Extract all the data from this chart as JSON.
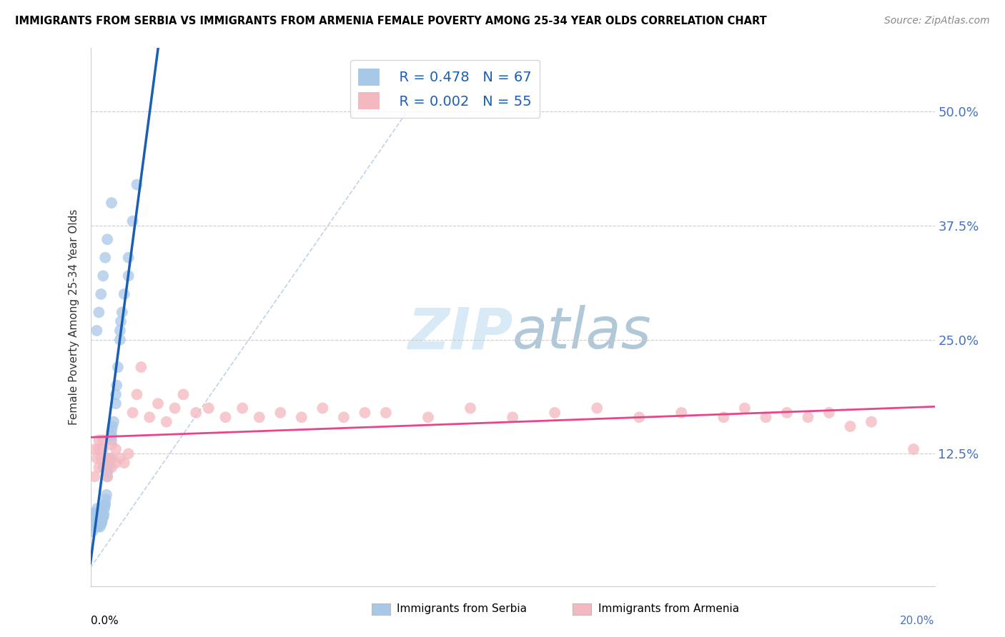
{
  "title": "IMMIGRANTS FROM SERBIA VS IMMIGRANTS FROM ARMENIA FEMALE POVERTY AMONG 25-34 YEAR OLDS CORRELATION CHART",
  "source": "Source: ZipAtlas.com",
  "ylabel": "Female Poverty Among 25-34 Year Olds",
  "yticks_labels": [
    "12.5%",
    "25.0%",
    "37.5%",
    "50.0%"
  ],
  "ytick_vals": [
    0.125,
    0.25,
    0.375,
    0.5
  ],
  "xlim": [
    0.0,
    0.2
  ],
  "ylim": [
    -0.02,
    0.57
  ],
  "legend_serbia_R": "0.478",
  "legend_serbia_N": "67",
  "legend_armenia_R": "0.002",
  "legend_armenia_N": "55",
  "serbia_color": "#a8c8e8",
  "armenia_color": "#f4b8c0",
  "serbia_line_color": "#1a5fb4",
  "armenia_line_color": "#e8448c",
  "diag_color": "#b0c8e0",
  "watermark_color": "#d8eaf5",
  "serbia_x": [
    0.0005,
    0.001,
    0.001,
    0.0012,
    0.0013,
    0.0015,
    0.0015,
    0.0016,
    0.0016,
    0.0017,
    0.0018,
    0.0018,
    0.0019,
    0.002,
    0.002,
    0.002,
    0.002,
    0.0021,
    0.0022,
    0.0022,
    0.0023,
    0.0023,
    0.0024,
    0.0025,
    0.0025,
    0.0026,
    0.0027,
    0.0028,
    0.003,
    0.003,
    0.003,
    0.0032,
    0.0033,
    0.0034,
    0.0035,
    0.0036,
    0.0038,
    0.004,
    0.004,
    0.0042,
    0.0044,
    0.0046,
    0.005,
    0.005,
    0.005,
    0.0052,
    0.0055,
    0.006,
    0.006,
    0.0062,
    0.0065,
    0.007,
    0.007,
    0.0072,
    0.0075,
    0.008,
    0.009,
    0.009,
    0.01,
    0.011,
    0.0015,
    0.002,
    0.0025,
    0.003,
    0.0035,
    0.004,
    0.005
  ],
  "serbia_y": [
    0.04,
    0.05,
    0.06,
    0.055,
    0.045,
    0.05,
    0.06,
    0.055,
    0.065,
    0.05,
    0.045,
    0.055,
    0.05,
    0.048,
    0.055,
    0.048,
    0.052,
    0.048,
    0.05,
    0.055,
    0.05,
    0.045,
    0.05,
    0.048,
    0.055,
    0.05,
    0.05,
    0.055,
    0.06,
    0.065,
    0.055,
    0.058,
    0.065,
    0.068,
    0.07,
    0.075,
    0.08,
    0.1,
    0.105,
    0.11,
    0.115,
    0.12,
    0.14,
    0.145,
    0.15,
    0.155,
    0.16,
    0.18,
    0.19,
    0.2,
    0.22,
    0.25,
    0.26,
    0.27,
    0.28,
    0.3,
    0.32,
    0.34,
    0.38,
    0.42,
    0.26,
    0.28,
    0.3,
    0.32,
    0.34,
    0.36,
    0.4
  ],
  "armenia_x": [
    0.001,
    0.001,
    0.0015,
    0.002,
    0.002,
    0.002,
    0.0025,
    0.003,
    0.003,
    0.003,
    0.004,
    0.004,
    0.005,
    0.005,
    0.005,
    0.006,
    0.006,
    0.007,
    0.008,
    0.009,
    0.01,
    0.011,
    0.012,
    0.014,
    0.016,
    0.018,
    0.02,
    0.022,
    0.025,
    0.028,
    0.032,
    0.036,
    0.04,
    0.045,
    0.05,
    0.055,
    0.06,
    0.065,
    0.07,
    0.08,
    0.09,
    0.1,
    0.11,
    0.12,
    0.13,
    0.14,
    0.15,
    0.155,
    0.16,
    0.165,
    0.17,
    0.175,
    0.18,
    0.185,
    0.195
  ],
  "armenia_y": [
    0.13,
    0.1,
    0.12,
    0.11,
    0.13,
    0.14,
    0.12,
    0.13,
    0.11,
    0.14,
    0.12,
    0.1,
    0.11,
    0.135,
    0.12,
    0.13,
    0.115,
    0.12,
    0.115,
    0.125,
    0.17,
    0.19,
    0.22,
    0.165,
    0.18,
    0.16,
    0.175,
    0.19,
    0.17,
    0.175,
    0.165,
    0.175,
    0.165,
    0.17,
    0.165,
    0.175,
    0.165,
    0.17,
    0.17,
    0.165,
    0.175,
    0.165,
    0.17,
    0.175,
    0.165,
    0.17,
    0.165,
    0.175,
    0.165,
    0.17,
    0.165,
    0.17,
    0.155,
    0.16,
    0.13
  ]
}
